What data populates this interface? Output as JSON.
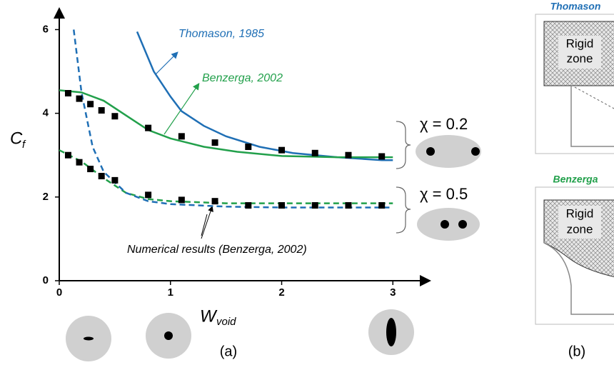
{
  "chart_data": {
    "type": "line",
    "y_label": {
      "main": "C",
      "sub": "f"
    },
    "x_label": {
      "main": "W",
      "sub": "void"
    },
    "xlim": [
      0,
      3.3
    ],
    "ylim": [
      0,
      6.4
    ],
    "xticks": [
      0,
      1,
      2,
      3
    ],
    "yticks": [
      0,
      2,
      4,
      6
    ],
    "series": [
      {
        "name": "Thomason, 1985",
        "color": "#1f6fb5",
        "dash": false,
        "x": [
          0.7,
          0.85,
          1.0,
          1.1,
          1.3,
          1.5,
          1.8,
          2.1,
          2.5,
          2.9,
          3.0
        ],
        "values": [
          5.95,
          5.0,
          4.4,
          4.05,
          3.7,
          3.45,
          3.2,
          3.05,
          2.95,
          2.88,
          2.88
        ]
      },
      {
        "name": "Benzerga, 2002",
        "color": "#22a04b",
        "dash": false,
        "x": [
          0,
          0.2,
          0.4,
          0.6,
          0.8,
          1.0,
          1.3,
          1.6,
          2.0,
          2.5,
          3.0
        ],
        "values": [
          4.55,
          4.5,
          4.3,
          3.95,
          3.6,
          3.4,
          3.2,
          3.08,
          2.98,
          2.95,
          2.95
        ]
      },
      {
        "color": "#22a04b",
        "dash": true,
        "x": [
          0,
          0.2,
          0.4,
          0.6,
          0.8,
          1.0,
          1.5,
          2.0,
          2.5,
          3.0
        ],
        "values": [
          3.12,
          2.85,
          2.45,
          2.1,
          1.95,
          1.9,
          1.85,
          1.85,
          1.85,
          1.85
        ]
      },
      {
        "color": "#1f6fb5",
        "dash": true,
        "x": [
          0.13,
          0.2,
          0.3,
          0.4,
          0.6,
          0.8,
          1.0,
          1.5,
          2.0,
          3.0
        ],
        "values": [
          6.0,
          4.5,
          3.2,
          2.6,
          2.1,
          1.9,
          1.83,
          1.77,
          1.75,
          1.75
        ]
      },
      {
        "name": "Numerical results  (Benzerga, 2002)",
        "color": "#000000",
        "marker": "square",
        "x": [
          0.08,
          0.18,
          0.28,
          0.38,
          0.5,
          0.8,
          1.1,
          1.4,
          1.7,
          2.0,
          2.3,
          2.6,
          2.9
        ],
        "values": [
          4.48,
          4.35,
          4.22,
          4.07,
          3.93,
          3.65,
          3.45,
          3.3,
          3.2,
          3.12,
          3.05,
          3.0,
          2.97
        ]
      },
      {
        "color": "#000000",
        "marker": "square",
        "x": [
          0.08,
          0.18,
          0.28,
          0.38,
          0.5,
          0.8,
          1.1,
          1.4,
          1.7,
          2.0,
          2.3,
          2.6,
          2.9
        ],
        "values": [
          3.0,
          2.83,
          2.67,
          2.5,
          2.4,
          2.05,
          1.93,
          1.9,
          1.8,
          1.8,
          1.8,
          1.8,
          1.8
        ]
      }
    ],
    "annotations": [
      "χ = 0.2",
      "χ = 0.5"
    ],
    "panel_label": "(a)"
  },
  "panel_b": {
    "label": "(b)",
    "boxes": [
      {
        "title": "Thomason",
        "zone": [
          "Rigid",
          "zone"
        ]
      },
      {
        "title": "Benzerga",
        "zone": [
          "Rigid",
          "zone"
        ]
      }
    ]
  }
}
